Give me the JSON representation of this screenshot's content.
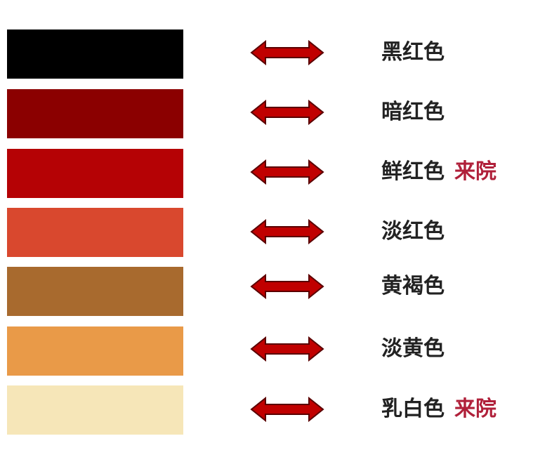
{
  "rows": [
    {
      "color": "#000000",
      "label": "黑红色",
      "note": ""
    },
    {
      "color": "#8b0000",
      "label": "暗红色",
      "note": ""
    },
    {
      "color": "#b50205",
      "label": "鲜红色",
      "note": "来院"
    },
    {
      "color": "#d9482e",
      "label": "淡红色",
      "note": ""
    },
    {
      "color": "#a86a2e",
      "label": "黄褐色",
      "note": ""
    },
    {
      "color": "#e99a48",
      "label": "淡黄色",
      "note": ""
    },
    {
      "color": "#f6e6b8",
      "label": "乳白色",
      "note": "来院"
    }
  ],
  "arrow_color": "#c00000",
  "arrow_icon": "double-arrow-icon"
}
